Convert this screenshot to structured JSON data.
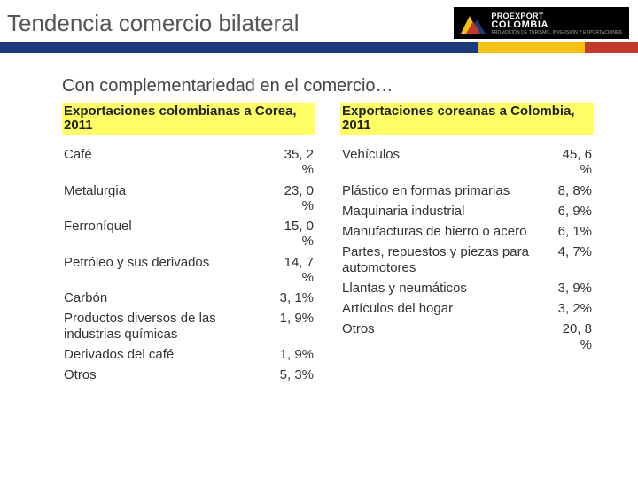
{
  "header": {
    "title": "Tendencia comercio bilateral",
    "logo": {
      "line1": "PROEXPORT",
      "line2": "COLOMBIA",
      "sub": "PROMOCIÓN DE TURISMO, INVERSIÓN Y EXPORTACIONES"
    }
  },
  "bar_colors": {
    "blue": "#1a3a7a",
    "yellow": "#f4c20d",
    "red": "#c0392b"
  },
  "subtitle": "Con complementariedad en el comercio…",
  "left": {
    "title": "Exportaciones colombianas a Corea, 2011",
    "rows": [
      {
        "label": "Café",
        "value": "35, 2\n%"
      },
      {
        "label": "Metalurgia",
        "value": "23, 0\n%"
      },
      {
        "label": "Ferroníquel",
        "value": "15, 0\n%"
      },
      {
        "label": "Petróleo y sus derivados",
        "value": "14, 7\n%"
      },
      {
        "label": "Carbón",
        "value": "3, 1%"
      },
      {
        "label": "Productos diversos de las industrias químicas",
        "value": "1, 9%"
      },
      {
        "label": "Derivados del café",
        "value": "1, 9%"
      },
      {
        "label": "Otros",
        "value": "5, 3%"
      }
    ]
  },
  "right": {
    "title": "Exportaciones coreanas a Colombia, 2011",
    "rows": [
      {
        "label": "Vehículos",
        "value": "45, 6\n%"
      },
      {
        "label": "Plástico en formas primarias",
        "value": "8, 8%"
      },
      {
        "label": "Maquinaria industrial",
        "value": "6, 9%"
      },
      {
        "label": "Manufacturas de hierro o acero",
        "value": "6, 1%"
      },
      {
        "label": "Partes, repuestos y piezas para automotores",
        "value": "4, 7%"
      },
      {
        "label": "Llantas y neumáticos",
        "value": "3, 9%"
      },
      {
        "label": "Artículos del hogar",
        "value": "3, 2%"
      },
      {
        "label": "Otros",
        "value": "20, 8\n%"
      }
    ]
  },
  "highlight_color": "#ffff66",
  "background_color": "#ffffff"
}
